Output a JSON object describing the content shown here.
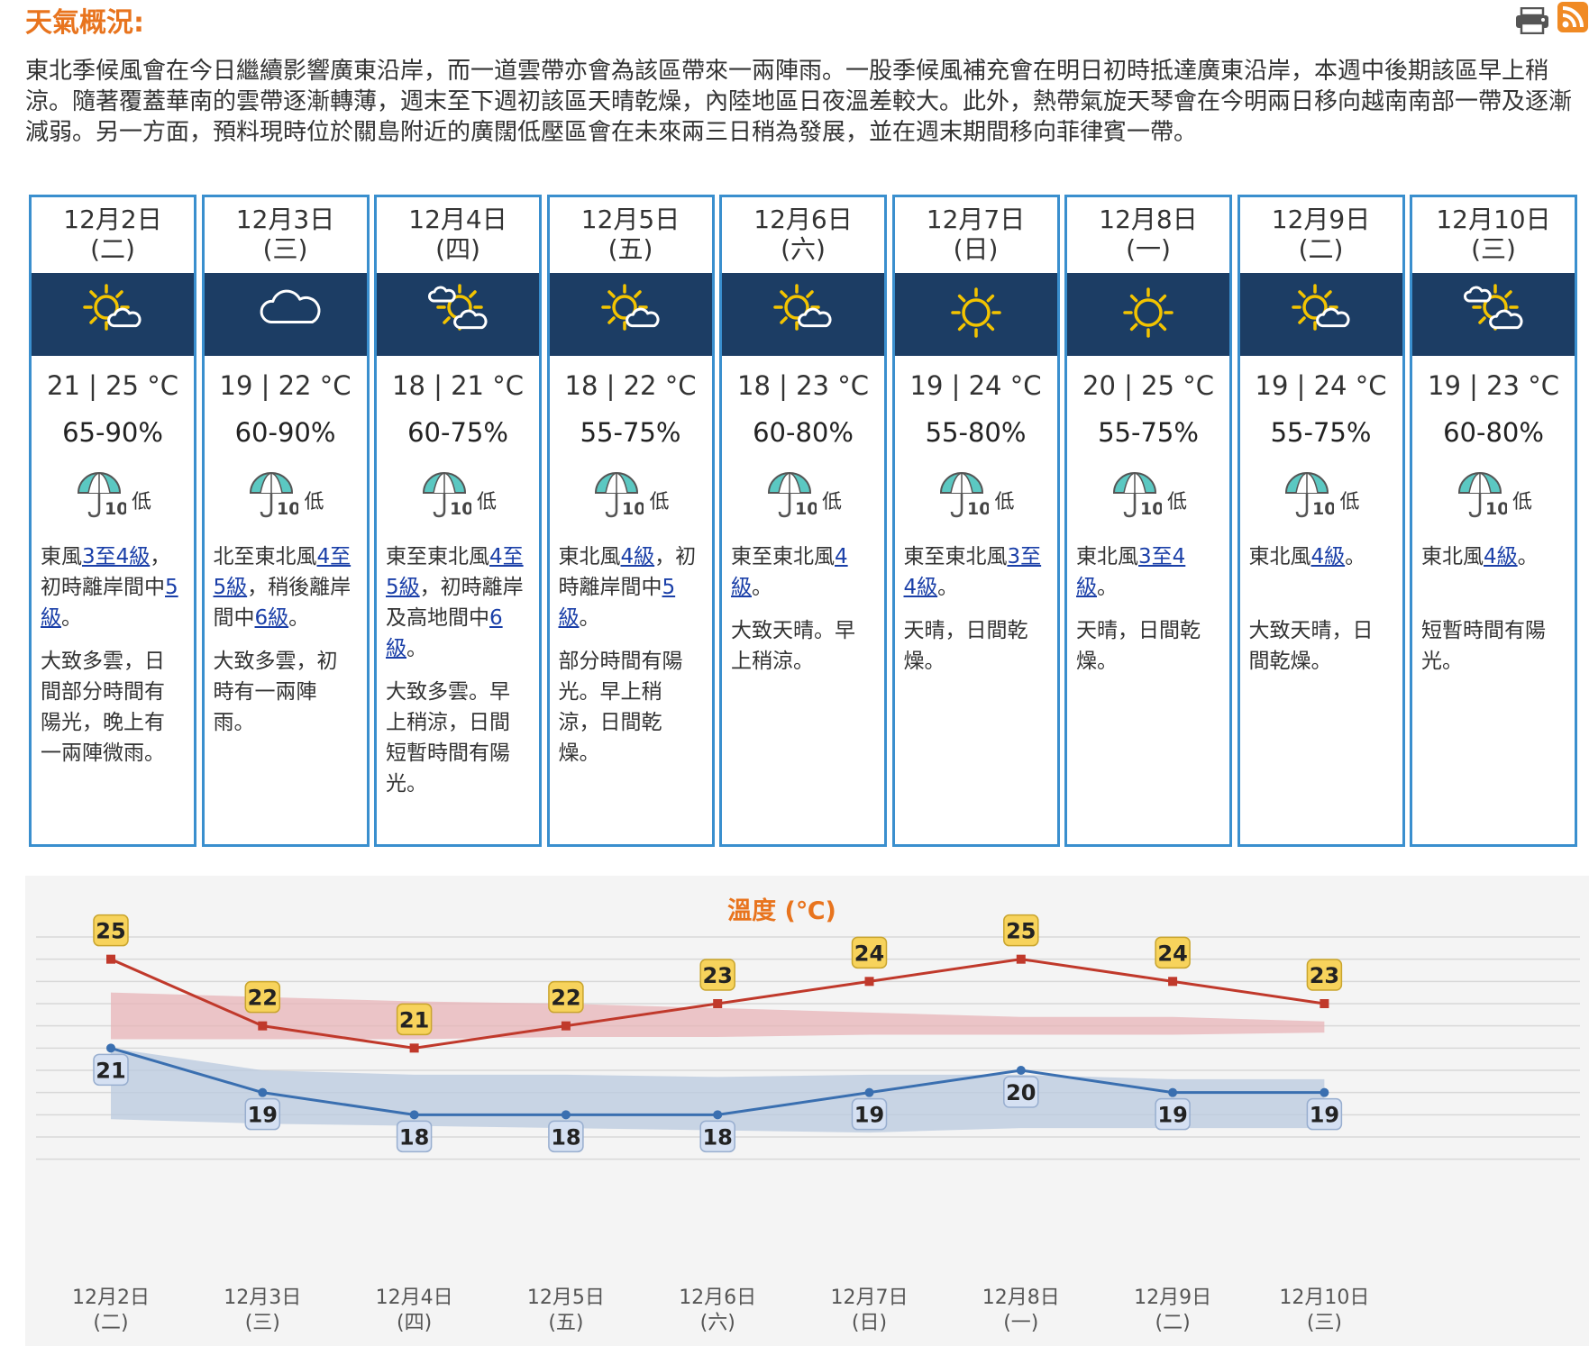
{
  "header": {
    "title": "天氣概況:",
    "summary": "東北季候風會在今日繼續影響廣東沿岸，而一道雲帶亦會為該區帶來一兩陣雨。一股季候風補充會在明日初時抵達廣東沿岸，本週中後期該區早上稍涼。隨著覆蓋華南的雲帶逐漸轉薄，週末至下週初該區天晴乾燥，內陸地區日夜溫差較大。此外，熱帶氣旋天琴會在今明兩日移向越南南部一帶及逐漸減弱。另一方面，預料現時位於關島附近的廣闊低壓區會在未來兩三日稍為發展，並在週末期間移向菲律賓一帶。"
  },
  "forecast": [
    {
      "date": "12月2日",
      "weekday": "(二)",
      "icon": "sun-cloud-icon",
      "temp": "21 | 25 °C",
      "rh": "65-90%",
      "psr": "低",
      "wind": [
        {
          "t": "東風"
        },
        {
          "t": "3至4級",
          "link": true
        },
        {
          "t": "，初時離岸間中"
        },
        {
          "t": "5級",
          "link": true
        },
        {
          "t": "。"
        }
      ],
      "desc": "大致多雲，日間部分時間有陽光，晚上有一兩陣微雨。"
    },
    {
      "date": "12月3日",
      "weekday": "(三)",
      "icon": "cloud-icon",
      "temp": "19 | 22 °C",
      "rh": "60-90%",
      "psr": "低",
      "wind": [
        {
          "t": "北至東北風"
        },
        {
          "t": "4至5級",
          "link": true
        },
        {
          "t": "，稍後離岸間中"
        },
        {
          "t": "6級",
          "link": true
        },
        {
          "t": "。"
        }
      ],
      "desc": "大致多雲，初時有一兩陣雨。"
    },
    {
      "date": "12月4日",
      "weekday": "(四)",
      "icon": "cloud-sun-cloud-icon",
      "temp": "18 | 21 °C",
      "rh": "60-75%",
      "psr": "低",
      "wind": [
        {
          "t": "東至東北風"
        },
        {
          "t": "4至5級",
          "link": true
        },
        {
          "t": "，初時離岸及高地間中"
        },
        {
          "t": "6級",
          "link": true
        },
        {
          "t": "。"
        }
      ],
      "desc": "大致多雲。早上稍涼，日間短暫時間有陽光。"
    },
    {
      "date": "12月5日",
      "weekday": "(五)",
      "icon": "sun-cloud-icon",
      "temp": "18 | 22 °C",
      "rh": "55-75%",
      "psr": "低",
      "wind": [
        {
          "t": "東北風"
        },
        {
          "t": "4級",
          "link": true
        },
        {
          "t": "，初時離岸間中"
        },
        {
          "t": "5級",
          "link": true
        },
        {
          "t": "。"
        }
      ],
      "desc": "部分時間有陽光。早上稍涼，日間乾燥。"
    },
    {
      "date": "12月6日",
      "weekday": "(六)",
      "icon": "sun-cloud-icon",
      "temp": "18 | 23 °C",
      "rh": "60-80%",
      "psr": "低",
      "wind": [
        {
          "t": "東至東北風"
        },
        {
          "t": "4級",
          "link": true
        },
        {
          "t": "。"
        }
      ],
      "desc": "大致天晴。早上稍涼。"
    },
    {
      "date": "12月7日",
      "weekday": "(日)",
      "icon": "sun-icon",
      "temp": "19 | 24 °C",
      "rh": "55-80%",
      "psr": "低",
      "wind": [
        {
          "t": "東至東北風"
        },
        {
          "t": "3至4級",
          "link": true
        },
        {
          "t": "。"
        }
      ],
      "desc": "天晴，日間乾燥。"
    },
    {
      "date": "12月8日",
      "weekday": "(一)",
      "icon": "sun-icon",
      "temp": "20 | 25 °C",
      "rh": "55-75%",
      "psr": "低",
      "wind": [
        {
          "t": "東北風"
        },
        {
          "t": "3至4級",
          "link": true
        },
        {
          "t": "。"
        }
      ],
      "desc": "天晴，日間乾燥。"
    },
    {
      "date": "12月9日",
      "weekday": "(二)",
      "icon": "sun-cloud-icon",
      "temp": "19 | 24 °C",
      "rh": "55-75%",
      "psr": "低",
      "wind": [
        {
          "t": "東北風"
        },
        {
          "t": "4級",
          "link": true
        },
        {
          "t": "。"
        }
      ],
      "desc": "大致天晴，日間乾燥。"
    },
    {
      "date": "12月10日",
      "weekday": "(三)",
      "icon": "cloud-sun-cloud-icon",
      "temp": "19 | 23 °C",
      "rh": "60-80%",
      "psr": "低",
      "wind": [
        {
          "t": "東北風"
        },
        {
          "t": "4級",
          "link": true
        },
        {
          "t": "。"
        }
      ],
      "desc": "短暫時間有陽光。"
    }
  ],
  "psr_icon_value": "10",
  "chart_data": {
    "type": "line",
    "title": "溫度 (℃)",
    "categories": [
      [
        "12月2日",
        "(二)"
      ],
      [
        "12月3日",
        "(三)"
      ],
      [
        "12月4日",
        "(四)"
      ],
      [
        "12月5日",
        "(五)"
      ],
      [
        "12月6日",
        "(六)"
      ],
      [
        "12月7日",
        "(日)"
      ],
      [
        "12月8日",
        "(一)"
      ],
      [
        "12月9日",
        "(二)"
      ],
      [
        "12月10日",
        "(三)"
      ]
    ],
    "series": [
      {
        "values": [
          25,
          22,
          21,
          22,
          23,
          24,
          25,
          24,
          23
        ],
        "color": "#c0392b"
      },
      {
        "values": [
          21,
          19,
          18,
          18,
          18,
          19,
          20,
          19,
          19
        ],
        "color": "#3a6fb0"
      }
    ],
    "bands": [
      {
        "upper": [
          23.5,
          23.3,
          23.1,
          23.0,
          22.8,
          22.6,
          22.4,
          22.4,
          22.2
        ],
        "lower": [
          21.4,
          21.4,
          21.4,
          21.5,
          21.5,
          21.6,
          21.6,
          21.6,
          21.7
        ],
        "color": "#e8b4b8"
      },
      {
        "upper": [
          21.0,
          20.0,
          19.8,
          19.8,
          19.7,
          19.8,
          19.8,
          19.6,
          19.6
        ],
        "lower": [
          17.8,
          17.6,
          17.5,
          17.4,
          17.3,
          17.2,
          17.4,
          17.4,
          17.4
        ],
        "color": "#b9c9df"
      }
    ],
    "ylim": [
      17,
      26
    ],
    "grid": true
  }
}
